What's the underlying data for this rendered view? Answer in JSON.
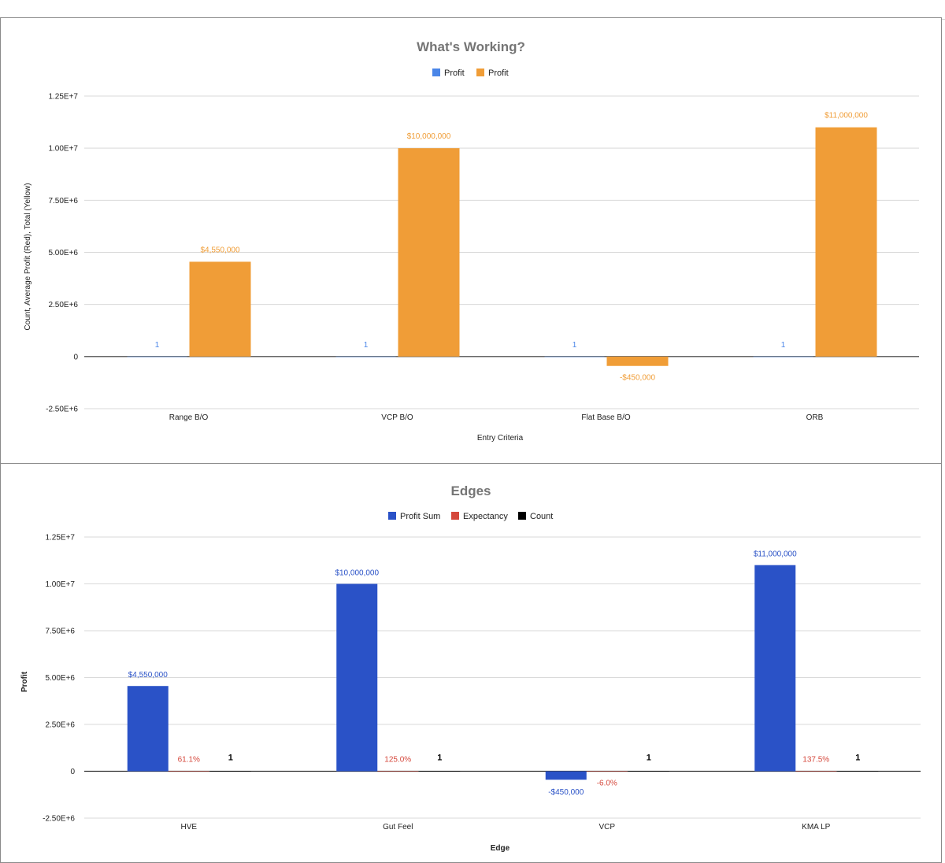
{
  "colors": {
    "orange": "#F09D37",
    "light_blue": "#4A86E8",
    "dark_blue": "#2A52C7",
    "red": "#D5483C",
    "black": "#000000",
    "grid": "#D9D9D9",
    "zero_line": "#333333"
  },
  "chart_data": [
    {
      "type": "bar",
      "title": "What's Working?",
      "xlabel": "Entry Criteria",
      "ylabel": "Count, Average Profit (Red), Total (Yellow)",
      "ylim": [
        -2500000,
        12500000
      ],
      "yticks": [
        {
          "value": -2500000,
          "label": "-2.50E+6"
        },
        {
          "value": 0,
          "label": "0"
        },
        {
          "value": 2500000,
          "label": "2.50E+6"
        },
        {
          "value": 5000000,
          "label": "5.00E+6"
        },
        {
          "value": 7500000,
          "label": "7.50E+6"
        },
        {
          "value": 10000000,
          "label": "1.00E+7"
        },
        {
          "value": 12500000,
          "label": "1.25E+7"
        }
      ],
      "categories": [
        "Range B/O",
        "VCP B/O",
        "Flat Base B/O",
        "ORB"
      ],
      "legend": [
        {
          "name": "Profit",
          "color": "#4A86E8"
        },
        {
          "name": "Profit",
          "color": "#F09D37"
        }
      ],
      "series": [
        {
          "name": "Profit",
          "color": "#4A86E8",
          "values": [
            1,
            1,
            1,
            1
          ],
          "labels": [
            "1",
            "1",
            "1",
            "1"
          ]
        },
        {
          "name": "Profit",
          "color": "#F09D37",
          "values": [
            4550000,
            10000000,
            -450000,
            11000000
          ],
          "labels": [
            "$4,550,000",
            "$10,000,000",
            "-$450,000",
            "$11,000,000"
          ]
        }
      ]
    },
    {
      "type": "bar",
      "title": "Edges",
      "xlabel": "Edge",
      "ylabel": "Profit",
      "ylim": [
        -2500000,
        12500000
      ],
      "yticks": [
        {
          "value": -2500000,
          "label": "-2.50E+6"
        },
        {
          "value": 0,
          "label": "0"
        },
        {
          "value": 2500000,
          "label": "2.50E+6"
        },
        {
          "value": 5000000,
          "label": "5.00E+6"
        },
        {
          "value": 7500000,
          "label": "7.50E+6"
        },
        {
          "value": 10000000,
          "label": "1.00E+7"
        },
        {
          "value": 12500000,
          "label": "1.25E+7"
        }
      ],
      "categories": [
        "HVE",
        "Gut Feel",
        "VCP",
        "KMA LP"
      ],
      "legend": [
        {
          "name": "Profit Sum",
          "color": "#2A52C7"
        },
        {
          "name": "Expectancy",
          "color": "#D5483C"
        },
        {
          "name": "Count",
          "color": "#000000"
        }
      ],
      "series": [
        {
          "name": "Profit Sum",
          "color": "#2A52C7",
          "values": [
            4550000,
            10000000,
            -450000,
            11000000
          ],
          "labels": [
            "$4,550,000",
            "$10,000,000",
            "-$450,000",
            "$11,000,000"
          ]
        },
        {
          "name": "Expectancy",
          "color": "#D5483C",
          "values": [
            0.611,
            1.25,
            -0.06,
            1.375
          ],
          "labels": [
            "61.1%",
            "125.0%",
            "-6.0%",
            "137.5%"
          ]
        },
        {
          "name": "Count",
          "color": "#000000",
          "values": [
            1,
            1,
            1,
            1
          ],
          "labels": [
            "1",
            "1",
            "1",
            "1"
          ]
        }
      ]
    }
  ]
}
